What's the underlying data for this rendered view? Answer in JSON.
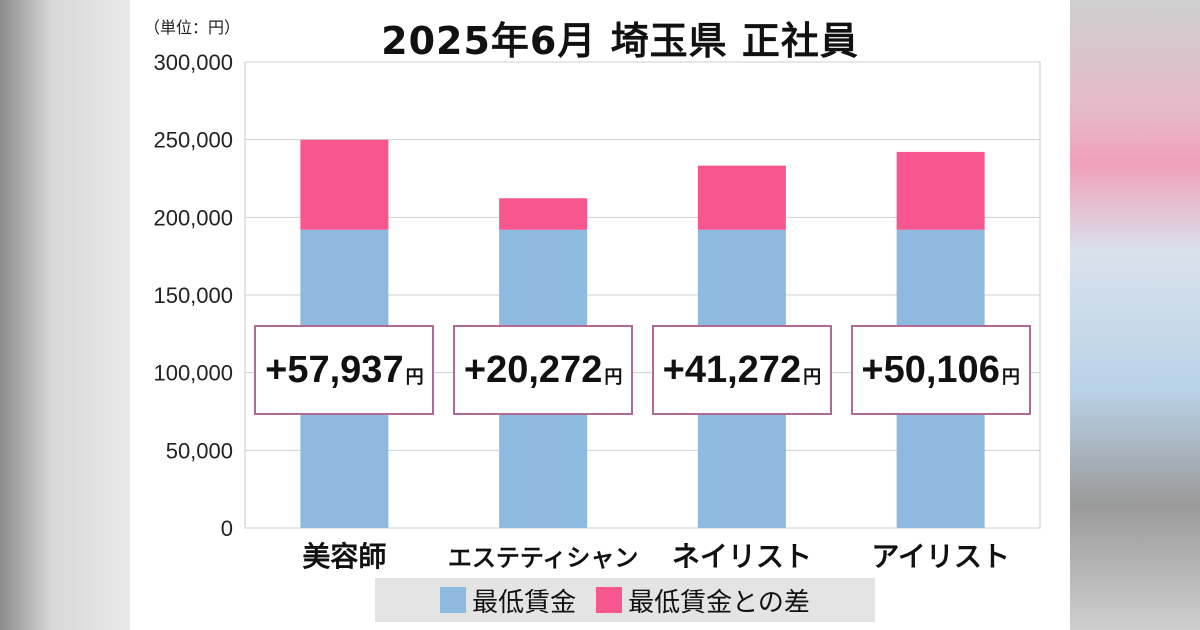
{
  "header": {
    "unit_label": "（単位：円）",
    "title": "2025年6月 埼玉県 正社員"
  },
  "colors": {
    "base": "#8fbadf",
    "diff": "#f7568e",
    "box_border": "#b06a98"
  },
  "chart_data": {
    "type": "bar",
    "stacked": true,
    "categories": [
      "美容師",
      "エステティシャン",
      "ネイリスト",
      "アイリスト"
    ],
    "series": [
      {
        "name": "最低賃金",
        "values": [
          192020,
          192020,
          192020,
          192020
        ]
      },
      {
        "name": "最低賃金との差",
        "values": [
          57937,
          20272,
          41272,
          50106
        ]
      }
    ],
    "yticks": [
      "0",
      "50,000",
      "100,000",
      "150,000",
      "200,000",
      "250,000",
      "300,000"
    ],
    "ylim": [
      0,
      300000
    ],
    "grid": true,
    "legend": "bottom",
    "diff_labels": [
      "+57,937",
      "+20,272",
      "+41,272",
      "+50,106"
    ],
    "diff_unit": "円"
  }
}
